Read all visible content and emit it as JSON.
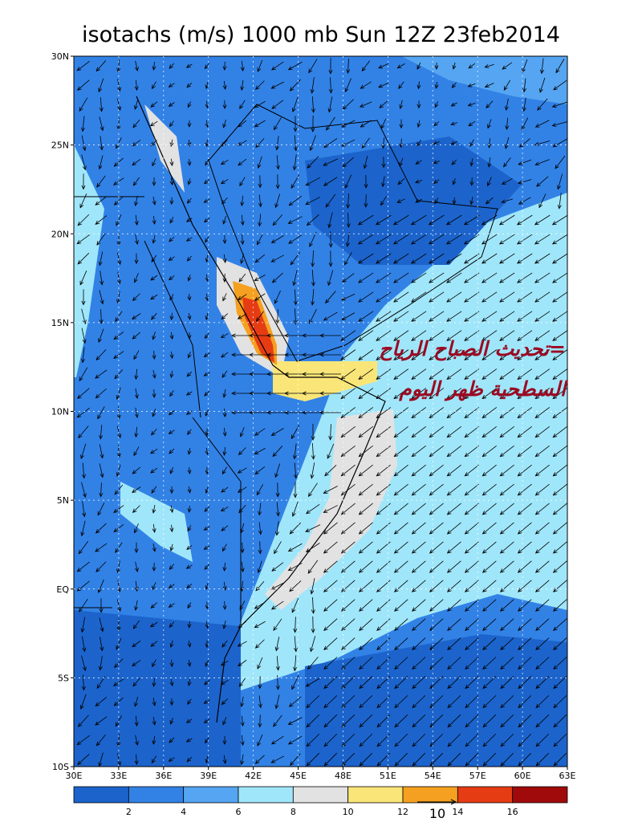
{
  "title": "isotachs (m/s) 1000 mb Sun 12Z 23feb2014",
  "lat_labels": [
    "30N",
    "25N",
    "20N",
    "15N",
    "10N",
    "5N",
    "EQ",
    "5S",
    "10S"
  ],
  "lon_labels": [
    "30E",
    "33E",
    "36E",
    "39E",
    "42E",
    "45E",
    "48E",
    "51E",
    "54E",
    "57E",
    "60E",
    "63E"
  ],
  "colorbar": {
    "colors": [
      "#1c64cc",
      "#3282e6",
      "#55a5f2",
      "#a0e6fa",
      "#e2e2e2",
      "#fae678",
      "#f5a020",
      "#e63c14",
      "#a00a0a"
    ],
    "labels": [
      "2",
      "4",
      "6",
      "8",
      "10",
      "12",
      "14",
      "16"
    ]
  },
  "vector_reference": "10",
  "annotation": [
    "=تحديث الصباح الرياح",
    "السطحية ظهر اليوم"
  ]
}
